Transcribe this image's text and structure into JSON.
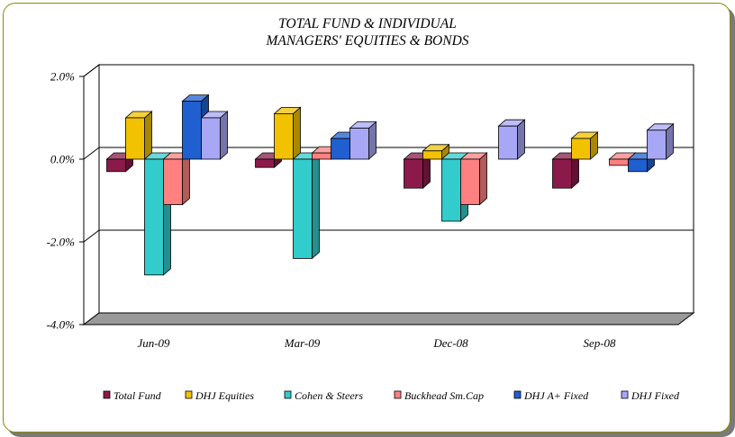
{
  "chart_data": {
    "type": "bar",
    "title_lines": [
      "TOTAL FUND  & INDIVIDUAL",
      "MANAGERS' EQUITIES & BONDS"
    ],
    "categories": [
      "Jun-09",
      "Mar-09",
      "Dec-08",
      "Sep-08"
    ],
    "y_ticks": [
      "2.0%",
      "0.0%",
      "-2.0%",
      "-4.0%"
    ],
    "ylim": [
      -4.0,
      2.0
    ],
    "grid": true,
    "legend_position": "bottom",
    "series": [
      {
        "name": "Total Fund",
        "color": "#8B1A4A",
        "values": [
          -0.3,
          -0.2,
          -0.7,
          -0.7
        ]
      },
      {
        "name": "DHJ Equities",
        "color": "#F2C200",
        "values": [
          1.0,
          1.1,
          0.2,
          0.5
        ]
      },
      {
        "name": "Cohen & Steers",
        "color": "#33CCCC",
        "values": [
          -2.8,
          -2.4,
          -1.5,
          0
        ]
      },
      {
        "name": "Buckhead Sm.Cap",
        "color": "#FF8080",
        "values": [
          -1.1,
          0.15,
          -1.1,
          -0.15
        ]
      },
      {
        "name": "DHJ A+ Fixed",
        "color": "#1F5FD0",
        "values": [
          1.4,
          0.5,
          0,
          -0.3
        ]
      },
      {
        "name": "DHJ Fixed",
        "color": "#A7A7F5",
        "values": [
          1.0,
          0.75,
          0.8,
          0.7
        ]
      }
    ]
  }
}
